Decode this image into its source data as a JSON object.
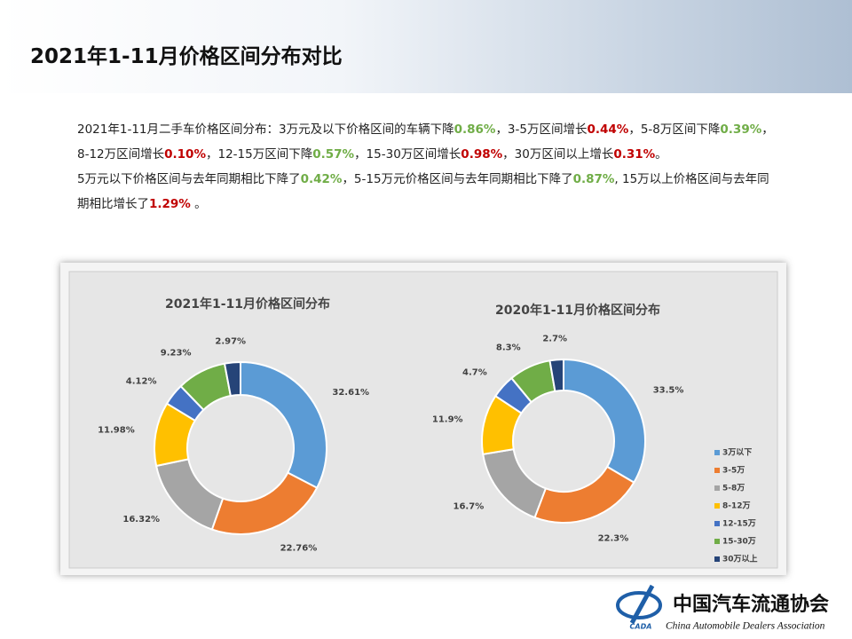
{
  "header": {
    "title": "2021年1-11月价格区间分布对比"
  },
  "paragraphs": [
    {
      "runs": [
        {
          "text": "2021年1-11月二手车价格区间分布：3万元及以下价格区间的车辆下降"
        },
        {
          "text": "0.86%",
          "color": "#70ad47"
        },
        {
          "text": "，3-5万区间增长"
        },
        {
          "text": "0.44%",
          "color": "#c00000"
        },
        {
          "text": "，5-8万区间下降"
        },
        {
          "text": "0.39%",
          "color": "#70ad47"
        },
        {
          "text": "，8-12万区间增长"
        },
        {
          "text": "0.10%",
          "color": "#c00000"
        },
        {
          "text": "，12-15万区间下降"
        },
        {
          "text": "0.57%",
          "color": "#70ad47"
        },
        {
          "text": "，15-30万区间增长"
        },
        {
          "text": "0.98%",
          "color": "#c00000"
        },
        {
          "text": "，30万区间以上增长"
        },
        {
          "text": "0.31%",
          "color": "#c00000"
        },
        {
          "text": "。"
        }
      ]
    },
    {
      "runs": [
        {
          "text": "5万元以下价格区间与去年同期相比下降了"
        },
        {
          "text": "0.42%",
          "color": "#70ad47"
        },
        {
          "text": "，5-15万元价格区间与去年同期相比下降了"
        },
        {
          "text": "0.87%",
          "color": "#70ad47"
        },
        {
          "text": ", 15万以上价格区间与去年同期相比增长了"
        },
        {
          "text": "1.29%",
          "color": "#c00000"
        },
        {
          "text": " 。"
        }
      ]
    }
  ],
  "chart_data": [
    {
      "type": "donut",
      "title": "2021年1-11月价格区间分布",
      "values": [
        32.61,
        22.76,
        16.32,
        11.98,
        4.12,
        9.23,
        2.97
      ],
      "value_labels": [
        "32.61%",
        "22.76%",
        "16.32%",
        "11.98%",
        "4.12%",
        "9.23%",
        "2.97%"
      ],
      "colors": [
        "#5b9bd5",
        "#ed7d31",
        "#a5a5a5",
        "#ffc000",
        "#4472c4",
        "#70ad47",
        "#264478"
      ]
    },
    {
      "type": "donut",
      "title": "2020年1-11月价格区间分布",
      "categories": [
        "3万以下",
        "3-5万",
        "5-8万",
        "8-12万",
        "12-15万",
        "15-30万",
        "30万以上"
      ],
      "values": [
        33.5,
        22.3,
        16.7,
        11.9,
        4.7,
        8.3,
        2.7
      ],
      "value_labels": [
        "33.5%",
        "22.3%",
        "16.7%",
        "11.9%",
        "4.7%",
        "8.3%",
        "2.7%"
      ],
      "colors": [
        "#5b9bd5",
        "#ed7d31",
        "#a5a5a5",
        "#ffc000",
        "#4472c4",
        "#70ad47",
        "#264478"
      ],
      "legend": "right"
    }
  ],
  "footer": {
    "org_cn": "中国汽车流通协会",
    "org_en": "China Automobile Dealers Association",
    "logo_text": "CADA"
  }
}
